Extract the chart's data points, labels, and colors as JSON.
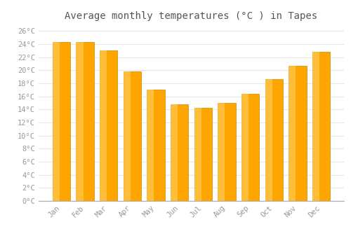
{
  "title": "Average monthly temperatures (°C ) in Tapes",
  "months": [
    "Jan",
    "Feb",
    "Mar",
    "Apr",
    "May",
    "Jun",
    "Jul",
    "Aug",
    "Sep",
    "Oct",
    "Nov",
    "Dec"
  ],
  "values": [
    24.3,
    24.3,
    23.0,
    19.8,
    17.0,
    14.8,
    14.3,
    15.0,
    16.4,
    18.6,
    20.7,
    22.8
  ],
  "bar_color_main": "#FFA500",
  "bar_color_light": "#FFD060",
  "bar_edge_color": "#CC8800",
  "ylim": [
    0,
    27
  ],
  "yticks": [
    0,
    2,
    4,
    6,
    8,
    10,
    12,
    14,
    16,
    18,
    20,
    22,
    24,
    26
  ],
  "ytick_labels": [
    "0°C",
    "2°C",
    "4°C",
    "6°C",
    "8°C",
    "10°C",
    "12°C",
    "14°C",
    "16°C",
    "18°C",
    "20°C",
    "22°C",
    "24°C",
    "26°C"
  ],
  "bg_color": "#ffffff",
  "grid_color": "#e8e8e8",
  "title_fontsize": 10,
  "tick_fontsize": 7.5,
  "tick_color": "#999999",
  "bar_width": 0.75
}
